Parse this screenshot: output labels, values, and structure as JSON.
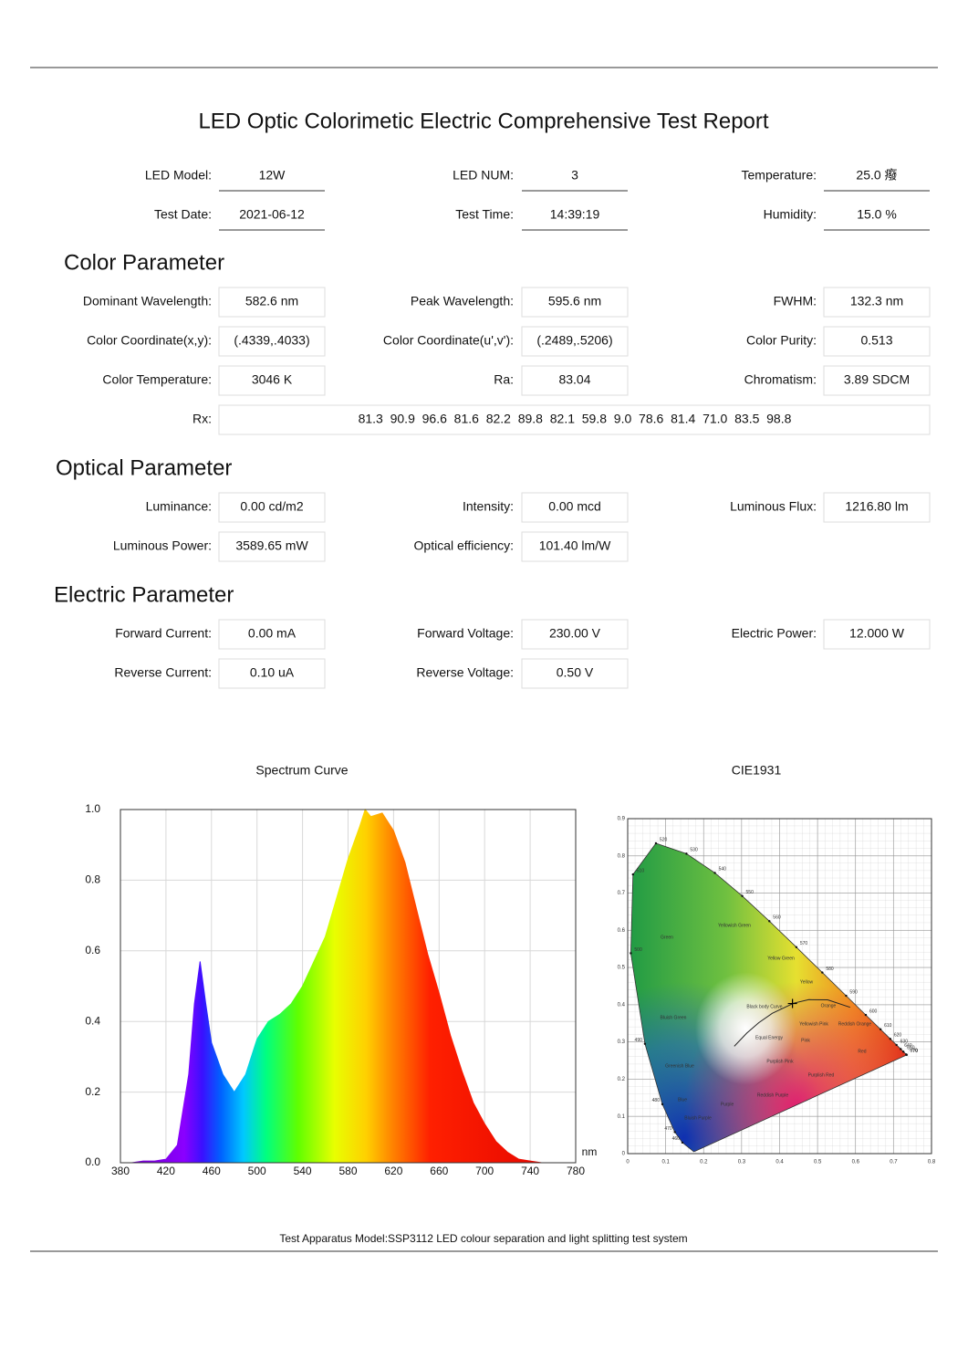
{
  "header": {
    "title": "LED Optic Colorimetic Electric Comprehensive Test Report"
  },
  "info": {
    "rows": [
      [
        {
          "label": "LED Model:",
          "value": "12W"
        },
        {
          "label": "LED NUM:",
          "value": "3"
        },
        {
          "label": "Temperature:",
          "value": "25.0 癈"
        }
      ],
      [
        {
          "label": "Test Date:",
          "value": "2021-06-12"
        },
        {
          "label": "Test Time:",
          "value": "14:39:19"
        },
        {
          "label": "Humidity:",
          "value": "15.0 %"
        }
      ]
    ]
  },
  "sections": [
    {
      "title": "Color Parameter",
      "rows": [
        [
          {
            "label": "Dominant Wavelength:",
            "value": "582.6 nm"
          },
          {
            "label": "Peak Wavelength:",
            "value": "595.6 nm"
          },
          {
            "label": "FWHM:",
            "value": "132.3 nm"
          }
        ],
        [
          {
            "label": "Color Coordinate(x,y):",
            "value": "(.4339,.4033)"
          },
          {
            "label": "Color Coordinate(u',v'):",
            "value": "(.2489,.5206)"
          },
          {
            "label": "Color Purity:",
            "value": "0.513"
          }
        ],
        [
          {
            "label": "Color Temperature:",
            "value": "3046 K"
          },
          {
            "label": "Ra:",
            "value": "83.04"
          },
          {
            "label": "Chromatism:",
            "value": "3.89 SDCM"
          }
        ]
      ],
      "wide": {
        "label": "Rx:",
        "value": "81.3  90.9  96.6  81.6  82.2  89.8  82.1  59.8  9.0  78.6  81.4  71.0  83.5  98.8"
      }
    },
    {
      "title": "Optical Parameter",
      "rows": [
        [
          {
            "label": "Luminance:",
            "value": "0.00 cd/m2"
          },
          {
            "label": "Intensity:",
            "value": "0.00 mcd"
          },
          {
            "label": "Luminous Flux:",
            "value": "1216.80 lm"
          }
        ],
        [
          {
            "label": "Luminous Power:",
            "value": "3589.65 mW"
          },
          {
            "label": "Optical efficiency:",
            "value": "101.40 lm/W"
          }
        ]
      ]
    },
    {
      "title": "Electric Parameter",
      "rows": [
        [
          {
            "label": "Forward Current:",
            "value": "0.00 mA"
          },
          {
            "label": "Forward Voltage:",
            "value": "230.00 V"
          },
          {
            "label": "Electric Power:",
            "value": "12.000 W"
          }
        ],
        [
          {
            "label": "Reverse Current:",
            "value": "0.10 uA"
          },
          {
            "label": "Reverse Voltage:",
            "value": "0.50 V"
          }
        ]
      ]
    }
  ],
  "footer": "Test Apparatus Model:SSP3112 LED colour separation and light splitting test system",
  "chart_data": [
    {
      "type": "area",
      "title": "Spectrum Curve",
      "x_label": "nm",
      "x": [
        380,
        390,
        400,
        410,
        420,
        430,
        440,
        445,
        450,
        455,
        460,
        470,
        480,
        490,
        500,
        510,
        520,
        530,
        540,
        550,
        560,
        570,
        580,
        590,
        595,
        600,
        610,
        620,
        630,
        640,
        650,
        660,
        670,
        680,
        690,
        700,
        710,
        720,
        730,
        740,
        750,
        760,
        770,
        780
      ],
      "values": [
        0,
        0,
        0.005,
        0.005,
        0.01,
        0.05,
        0.25,
        0.45,
        0.57,
        0.45,
        0.34,
        0.25,
        0.2,
        0.25,
        0.35,
        0.4,
        0.42,
        0.45,
        0.5,
        0.57,
        0.64,
        0.75,
        0.86,
        0.95,
        1.0,
        0.98,
        0.99,
        0.94,
        0.85,
        0.72,
        0.59,
        0.48,
        0.36,
        0.26,
        0.17,
        0.11,
        0.06,
        0.03,
        0.01,
        0.005,
        0,
        0,
        0,
        0
      ],
      "xlim": [
        380,
        780
      ],
      "xticks": [
        380,
        420,
        460,
        500,
        540,
        580,
        620,
        660,
        700,
        740,
        780
      ],
      "ylim": [
        0,
        1
      ],
      "yticks": [
        {
          "value": 0,
          "label": "0.0"
        },
        0.2,
        0.4,
        0.6,
        0.8,
        {
          "value": 1,
          "label": "1.0"
        }
      ],
      "grid": true
    },
    {
      "type": "chromaticity",
      "title": "CIE1931",
      "xlim": [
        0,
        0.8
      ],
      "xticks": [
        0,
        0.1,
        0.2,
        0.3,
        0.4,
        0.5,
        0.6,
        0.7,
        0.8
      ],
      "ylim": [
        0,
        0.9
      ],
      "yticks": [
        0,
        0.1,
        0.2,
        0.3,
        0.4,
        0.5,
        0.6,
        0.7,
        0.8,
        0.9
      ],
      "grid": true,
      "locus": {
        "x": [
          0.1741,
          0.144,
          0.1241,
          0.0913,
          0.0454,
          0.0082,
          0.0139,
          0.0743,
          0.1547,
          0.2296,
          0.3016,
          0.3731,
          0.4441,
          0.5125,
          0.5752,
          0.627,
          0.6658,
          0.6915,
          0.7079,
          0.719,
          0.726,
          0.7334,
          0.7347
        ],
        "y": [
          0.005,
          0.0297,
          0.0578,
          0.1327,
          0.295,
          0.5384,
          0.7502,
          0.8338,
          0.8059,
          0.7543,
          0.6923,
          0.6245,
          0.5547,
          0.4866,
          0.4242,
          0.3725,
          0.334,
          0.3083,
          0.292,
          0.2809,
          0.274,
          0.2666,
          0.2653
        ],
        "labels": [
          null,
          "460",
          "470",
          "480",
          "490",
          "500",
          "510",
          "520",
          "530",
          "540",
          "550",
          "560",
          "570",
          "580",
          "590",
          "600",
          "610",
          "620",
          "630",
          "640",
          "650",
          "670",
          "770"
        ]
      },
      "point": {
        "x": 0.4339,
        "y": 0.4033
      },
      "annotations": [
        "Green",
        "Yellowish Green",
        "Yellow Green",
        "Yellow",
        "Orange",
        "Reddish Orange",
        "Red",
        "Pink",
        "Yellowish Pink",
        "Purplish Pink",
        "Purplish Red",
        "Reddish Purple",
        "Purple",
        "Bluish Purple",
        "Blue",
        "Greenish Blue",
        "Bluish Green",
        "Black body Curve",
        "Equal Energy"
      ]
    }
  ]
}
